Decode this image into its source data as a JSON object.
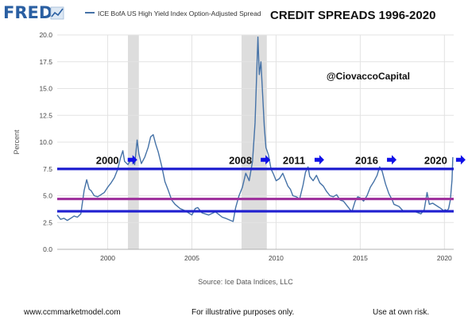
{
  "header": {
    "logo": "FRED",
    "series_title": "ICE BofA US High Yield Index Option-Adjusted Spread",
    "overlay_title": "CREDIT SPREADS 1996-2020"
  },
  "colors": {
    "series": "#4572a7",
    "blue_band": "#1f1fd0",
    "magenta_band": "#a0339e",
    "arrow": "#1010e8",
    "recession": "#dddddd",
    "grid": "#e3e3e3",
    "logo": "#2a5fa2"
  },
  "chart_data": {
    "type": "line",
    "title": "ICE BofA US High Yield Index Option-Adjusted Spread",
    "ylabel": "Percent",
    "xlabel": "",
    "xlim": [
      1997.0,
      2020.55
    ],
    "ylim": [
      0,
      20
    ],
    "x_ticks": [
      2000,
      2005,
      2010,
      2015,
      2020
    ],
    "x_tick_labels": [
      "2000",
      "2005",
      "2010",
      "2015",
      "2020"
    ],
    "y_ticks": [
      0.0,
      2.5,
      5.0,
      7.5,
      10.0,
      12.5,
      15.0,
      17.5,
      20.0
    ],
    "y_tick_labels": [
      "0.0",
      "2.5",
      "5.0",
      "7.5",
      "10.0",
      "12.5",
      "15.0",
      "17.5",
      "20.0"
    ],
    "grid": true,
    "source": "Source: Ice Data Indices, LLC",
    "series": [
      {
        "name": "ICE BofA US High Yield Index Option-Adjusted Spread",
        "x": [
          1997.0,
          1997.2,
          1997.4,
          1997.6,
          1997.8,
          1998.0,
          1998.2,
          1998.4,
          1998.6,
          1998.75,
          1998.9,
          1999.0,
          1999.2,
          1999.4,
          1999.6,
          1999.8,
          2000.0,
          2000.2,
          2000.4,
          2000.6,
          2000.75,
          2000.9,
          2001.0,
          2001.2,
          2001.4,
          2001.6,
          2001.75,
          2001.85,
          2002.0,
          2002.2,
          2002.4,
          2002.55,
          2002.7,
          2002.85,
          2003.0,
          2003.2,
          2003.4,
          2003.6,
          2003.8,
          2004.0,
          2004.3,
          2004.6,
          2005.0,
          2005.2,
          2005.35,
          2005.6,
          2006.0,
          2006.4,
          2006.8,
          2007.0,
          2007.3,
          2007.45,
          2007.6,
          2007.8,
          2008.0,
          2008.2,
          2008.4,
          2008.6,
          2008.75,
          2008.85,
          2008.92,
          2009.0,
          2009.1,
          2009.2,
          2009.3,
          2009.4,
          2009.55,
          2009.7,
          2009.85,
          2010.0,
          2010.2,
          2010.4,
          2010.55,
          2010.7,
          2010.85,
          2011.0,
          2011.2,
          2011.4,
          2011.6,
          2011.75,
          2011.9,
          2012.0,
          2012.2,
          2012.4,
          2012.6,
          2012.8,
          2013.0,
          2013.2,
          2013.4,
          2013.6,
          2013.8,
          2014.0,
          2014.3,
          2014.5,
          2014.7,
          2014.85,
          2015.0,
          2015.2,
          2015.4,
          2015.6,
          2015.8,
          2016.0,
          2016.15,
          2016.3,
          2016.5,
          2016.7,
          2016.9,
          2017.0,
          2017.3,
          2017.6,
          2017.9,
          2018.0,
          2018.3,
          2018.6,
          2018.8,
          2018.97,
          2019.1,
          2019.3,
          2019.6,
          2019.8,
          2019.95,
          2020.05,
          2020.15,
          2020.25,
          2020.35,
          2020.45,
          2020.5
        ],
        "values": [
          3.2,
          2.8,
          2.9,
          2.7,
          2.9,
          3.1,
          3.0,
          3.3,
          5.5,
          6.5,
          5.6,
          5.5,
          5.0,
          4.9,
          5.1,
          5.3,
          5.8,
          6.2,
          6.7,
          7.5,
          8.5,
          9.2,
          8.2,
          7.9,
          8.4,
          7.9,
          10.2,
          8.9,
          8.0,
          8.6,
          9.5,
          10.5,
          10.7,
          9.8,
          9.1,
          7.8,
          6.3,
          5.5,
          4.6,
          4.2,
          3.8,
          3.6,
          3.2,
          3.8,
          3.9,
          3.4,
          3.2,
          3.5,
          3.0,
          2.9,
          2.7,
          2.6,
          3.9,
          5.0,
          5.8,
          7.1,
          6.4,
          8.2,
          11.8,
          16.5,
          19.8,
          16.3,
          17.5,
          14.5,
          11.5,
          9.5,
          8.8,
          7.5,
          7.0,
          6.4,
          6.6,
          7.1,
          6.5,
          5.9,
          5.6,
          5.0,
          4.9,
          4.7,
          6.0,
          7.2,
          7.7,
          6.8,
          6.4,
          6.9,
          6.2,
          5.9,
          5.4,
          5.0,
          4.9,
          5.1,
          4.6,
          4.5,
          3.9,
          3.5,
          4.5,
          4.9,
          4.8,
          4.5,
          5.0,
          5.8,
          6.3,
          6.9,
          7.7,
          7.3,
          6.1,
          5.2,
          4.6,
          4.2,
          4.0,
          3.5,
          3.6,
          3.5,
          3.5,
          3.3,
          3.7,
          5.3,
          4.2,
          4.3,
          4.0,
          3.8,
          3.6,
          3.7,
          3.6,
          3.8,
          4.6,
          6.5,
          8.6
        ]
      }
    ],
    "recessions": [
      [
        2001.2,
        2001.85
      ],
      [
        2007.95,
        2009.45
      ]
    ],
    "bands": [
      {
        "kind": "blue",
        "y": 7.5
      },
      {
        "kind": "magenta",
        "y": 4.7
      },
      {
        "kind": "blue",
        "y": 3.55
      }
    ],
    "annotations": [
      {
        "label": "2000",
        "x": 1999.3,
        "y": 8.35
      },
      {
        "label": "2008",
        "x": 2007.2,
        "y": 8.35
      },
      {
        "label": "2011",
        "x": 2010.4,
        "y": 8.35
      },
      {
        "label": "2016",
        "x": 2014.7,
        "y": 8.35
      },
      {
        "label": "2020",
        "x": 2018.8,
        "y": 8.35
      }
    ],
    "watermark": "@CiovaccoCapital"
  },
  "footer": {
    "website": "www.ccmmarketmodel.com",
    "disclaimer": "For illustrative purposes only.",
    "risk": "Use at own risk."
  }
}
